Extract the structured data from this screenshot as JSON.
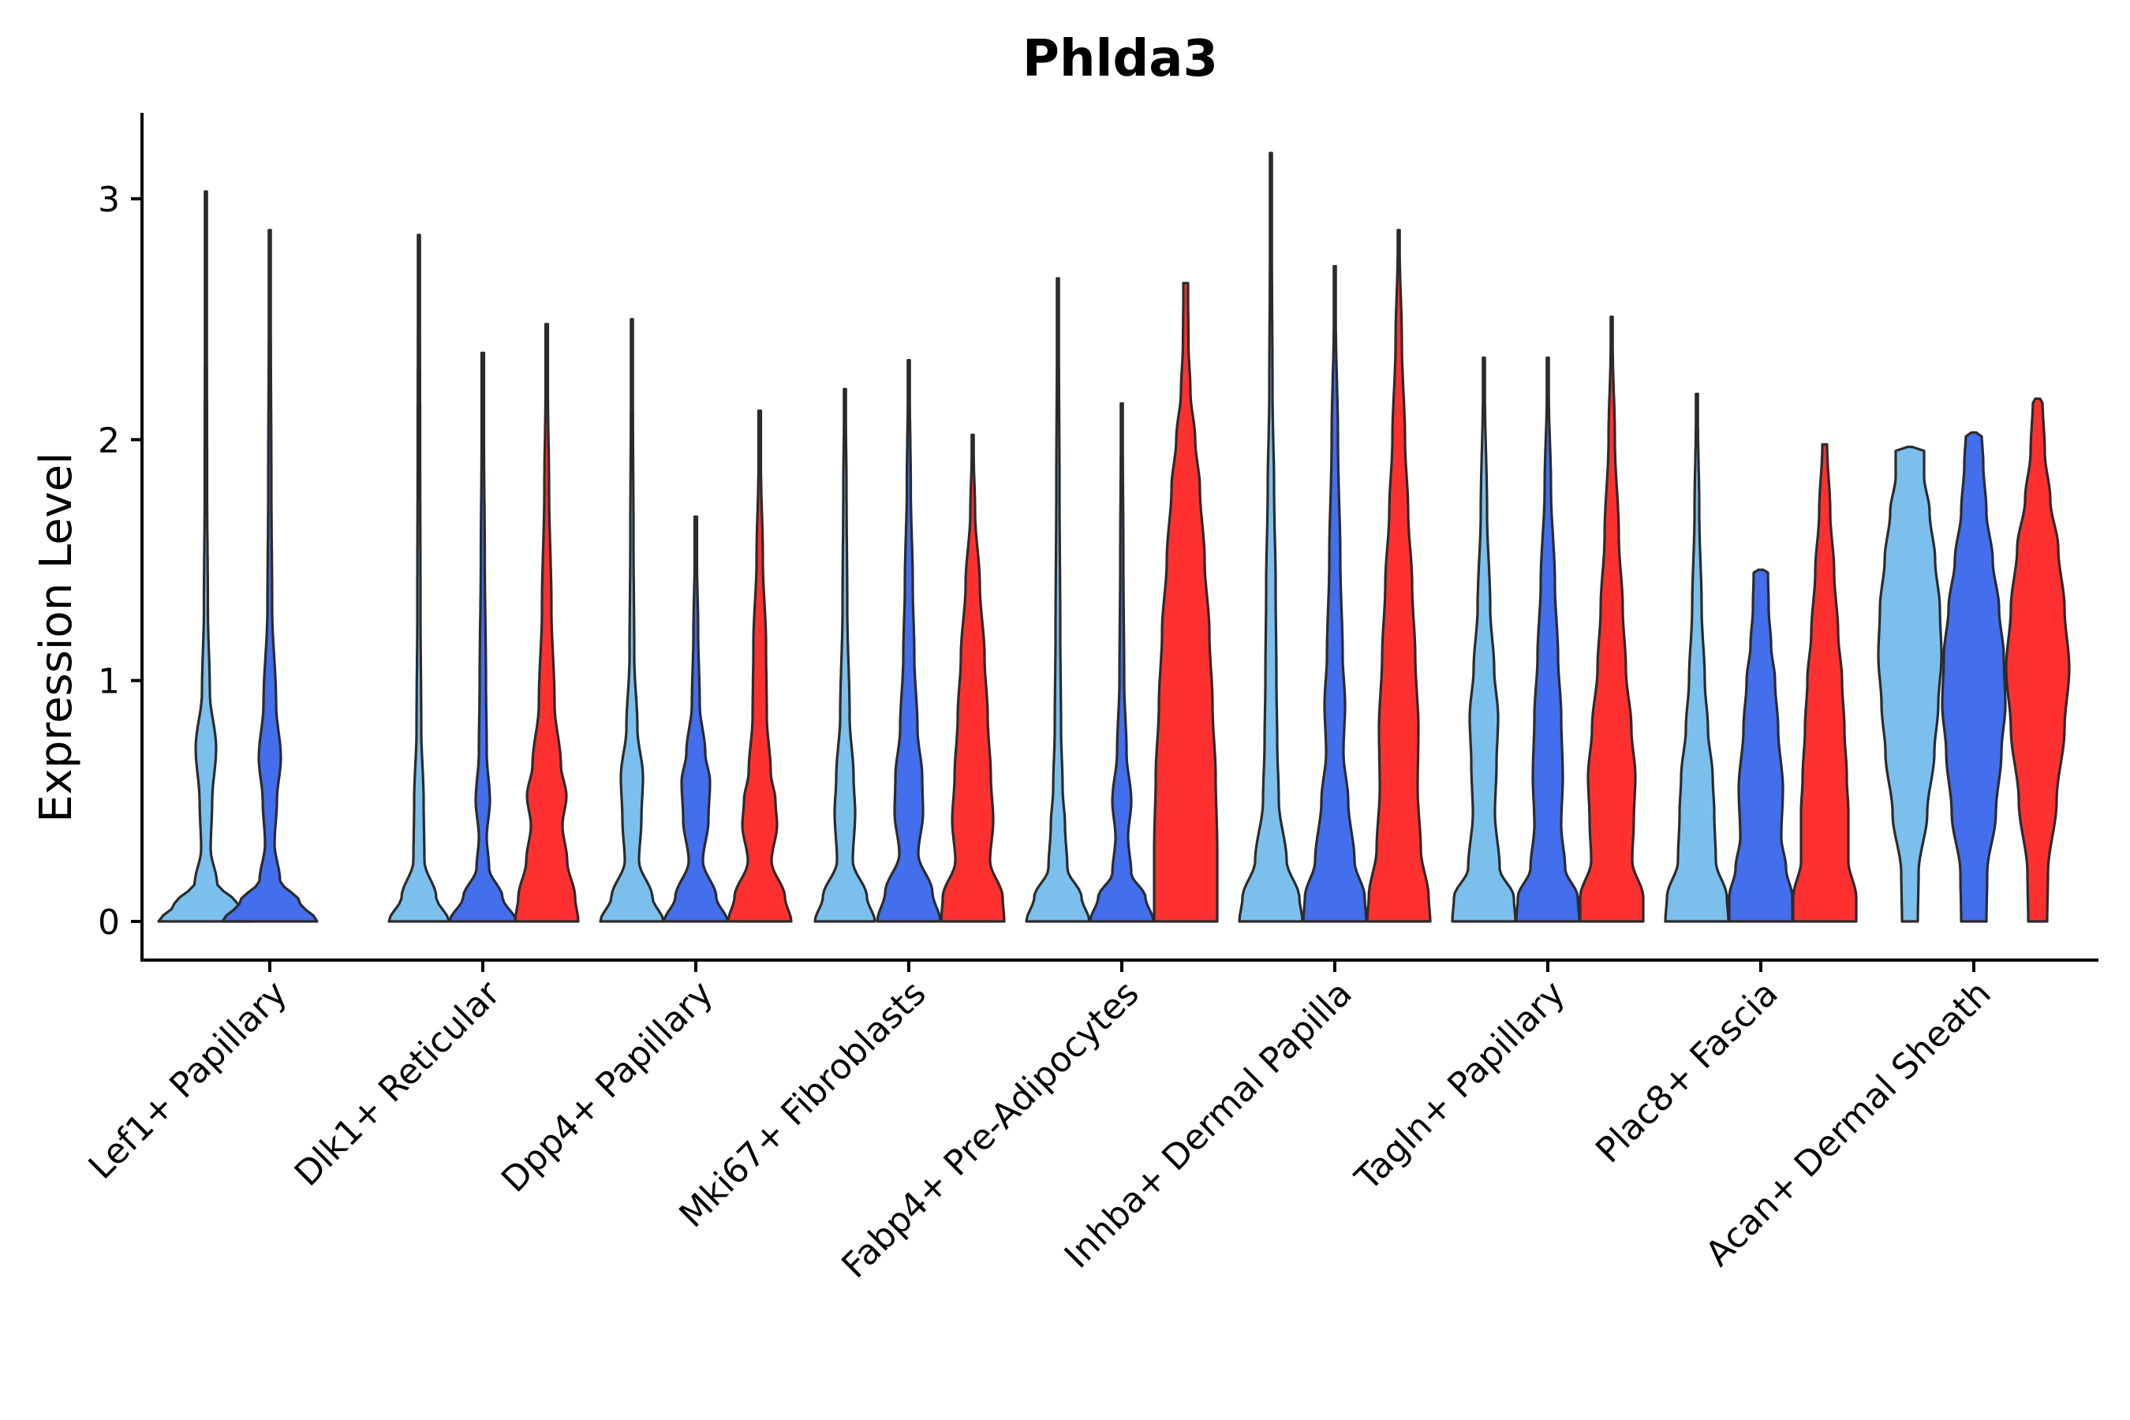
{
  "chart_data": {
    "type": "violin",
    "title": "Phlda3",
    "xlabel": "",
    "ylabel": "Expression Level",
    "ylim": [
      -0.16,
      3.35
    ],
    "yticks": [
      0,
      1,
      2,
      3
    ],
    "categories": [
      "Lef1+ Papillary",
      "Dlk1+ Reticular",
      "Dpp4+ Papillary",
      "Mki67+ Fibroblasts",
      "Fabp4+ Pre-Adipocytes",
      "Inhba+ Dermal Papilla",
      "Tagln+ Papillary",
      "Plac8+ Fascia",
      "Acan+ Dermal Sheath"
    ],
    "groups": [
      {
        "name": "group-1",
        "color": "#7bbfed"
      },
      {
        "name": "group-2",
        "color": "#436eec"
      },
      {
        "name": "group-3",
        "color": "#ff3030"
      }
    ],
    "violins": [
      {
        "category": 0,
        "group": 0,
        "max": 3.03
      },
      {
        "category": 0,
        "group": 1,
        "max": 2.87
      },
      {
        "category": 1,
        "group": 0,
        "max": 2.85
      },
      {
        "category": 1,
        "group": 1,
        "max": 2.36
      },
      {
        "category": 1,
        "group": 2,
        "max": 2.48
      },
      {
        "category": 2,
        "group": 0,
        "max": 2.5
      },
      {
        "category": 2,
        "group": 1,
        "max": 1.68
      },
      {
        "category": 2,
        "group": 2,
        "max": 2.12
      },
      {
        "category": 3,
        "group": 0,
        "max": 2.21
      },
      {
        "category": 3,
        "group": 1,
        "max": 2.33
      },
      {
        "category": 3,
        "group": 2,
        "max": 2.02
      },
      {
        "category": 4,
        "group": 0,
        "max": 2.67
      },
      {
        "category": 4,
        "group": 1,
        "max": 2.15
      },
      {
        "category": 4,
        "group": 2,
        "max": 2.65
      },
      {
        "category": 5,
        "group": 0,
        "max": 3.19
      },
      {
        "category": 5,
        "group": 1,
        "max": 2.72
      },
      {
        "category": 5,
        "group": 2,
        "max": 2.87
      },
      {
        "category": 6,
        "group": 0,
        "max": 2.34
      },
      {
        "category": 6,
        "group": 1,
        "max": 2.34
      },
      {
        "category": 6,
        "group": 2,
        "max": 2.51
      },
      {
        "category": 7,
        "group": 0,
        "max": 2.19
      },
      {
        "category": 7,
        "group": 1,
        "max": 1.46
      },
      {
        "category": 7,
        "group": 2,
        "max": 1.98
      },
      {
        "category": 8,
        "group": 0,
        "max": 1.97
      },
      {
        "category": 8,
        "group": 1,
        "max": 2.03
      },
      {
        "category": 8,
        "group": 2,
        "max": 2.17
      }
    ]
  }
}
